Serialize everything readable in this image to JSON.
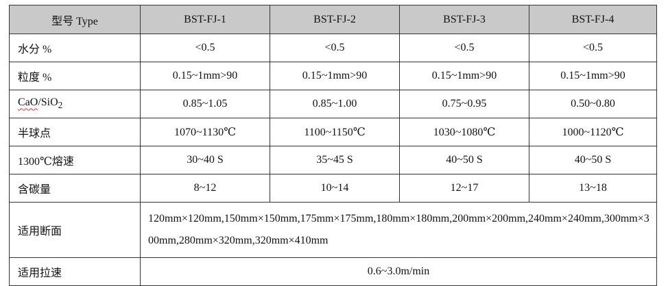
{
  "table": {
    "header": {
      "type_label": "型号 Type",
      "models": [
        "BST-FJ-1",
        "BST-FJ-2",
        "BST-FJ-3",
        "BST-FJ-4"
      ]
    },
    "rows": [
      {
        "label": "水分  %",
        "values": [
          "<0.5",
          "<0.5",
          "<0.5",
          "<0.5"
        ]
      },
      {
        "label": "粒度  %",
        "values": [
          "0.15~1mm>90",
          "0.15~1mm>90",
          "0.15~1mm>90",
          "0.15~1mm>90"
        ]
      },
      {
        "label_prefix": "CaO",
        "label_suffix": "/SiO",
        "label_sub": "2",
        "values": [
          "0.85~1.05",
          "0.85~1.00",
          "0.75~0.95",
          "0.50~0.80"
        ]
      },
      {
        "label": "半球点",
        "values": [
          "1070~1130℃",
          "1100~1150℃",
          "1030~1080℃",
          "1000~1120℃"
        ]
      },
      {
        "label": "1300℃熔速",
        "values": [
          "30~40 S",
          "35~45 S",
          "40~50 S",
          "40~50 S"
        ]
      },
      {
        "label": "含碳量",
        "values": [
          "8~12",
          "10~14",
          "12~17",
          "13~18"
        ]
      }
    ],
    "sections": {
      "label": "适用断面",
      "value": "120mm×120mm,150mm×150mm,175mm×175mm,180mm×180mm,200mm×200mm,240mm×240mm,300mm×300mm,280mm×320mm,320mm×410mm"
    },
    "speed": {
      "label": "适用拉速",
      "value": "0.6~3.0m/min"
    }
  }
}
